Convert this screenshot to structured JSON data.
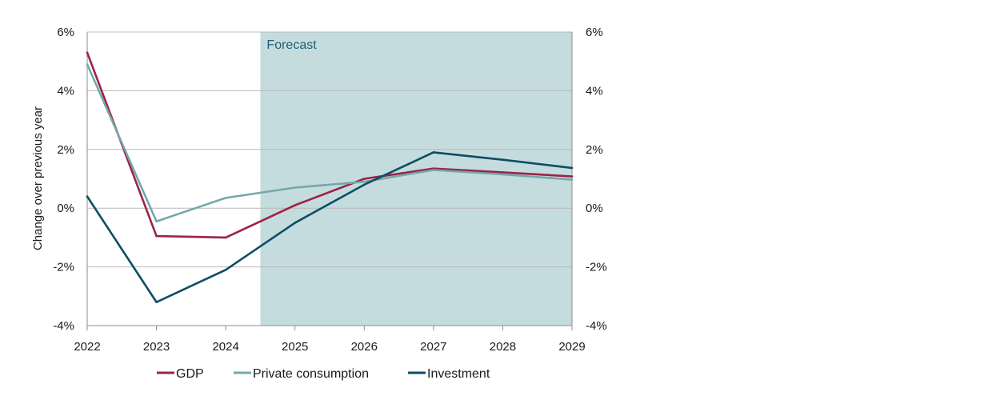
{
  "chart_data": {
    "type": "line",
    "x": [
      2022,
      2023,
      2024,
      2025,
      2026,
      2027,
      2028,
      2029
    ],
    "x_tick_labels": [
      "2022",
      "2023",
      "2024",
      "2025",
      "2026",
      "2027",
      "2028",
      "2029"
    ],
    "ylim": [
      -4,
      6
    ],
    "y_ticks": [
      -4,
      -2,
      0,
      2,
      4,
      6
    ],
    "y_tick_labels": [
      "-4%",
      "-2%",
      "0%",
      "2%",
      "4%",
      "6%"
    ],
    "y_right_tick_labels": [
      "-4%",
      "-2%",
      "0%",
      "2%",
      "4%",
      "6%"
    ],
    "ylabel": "Change over previous year",
    "xlabel": "",
    "grid": "horizontal",
    "forecast_region": {
      "from": 2024.5,
      "to": 2029,
      "label": "Forecast",
      "fill_color": "#c5dcde",
      "label_color": "#1e5f74"
    },
    "legend_position": "bottom-center",
    "series": [
      {
        "name": "GDP",
        "color": "#9b2346",
        "values": [
          5.3,
          -0.95,
          -1.0,
          0.1,
          1.0,
          1.35,
          1.22,
          1.08
        ]
      },
      {
        "name": "Private consumption",
        "color": "#74a8ab",
        "values": [
          4.9,
          -0.45,
          0.35,
          0.7,
          0.9,
          1.3,
          1.15,
          0.97
        ]
      },
      {
        "name": "Investment",
        "color": "#0e4d64",
        "values": [
          0.4,
          -3.2,
          -2.1,
          -0.5,
          0.8,
          1.9,
          1.65,
          1.37
        ]
      }
    ]
  }
}
